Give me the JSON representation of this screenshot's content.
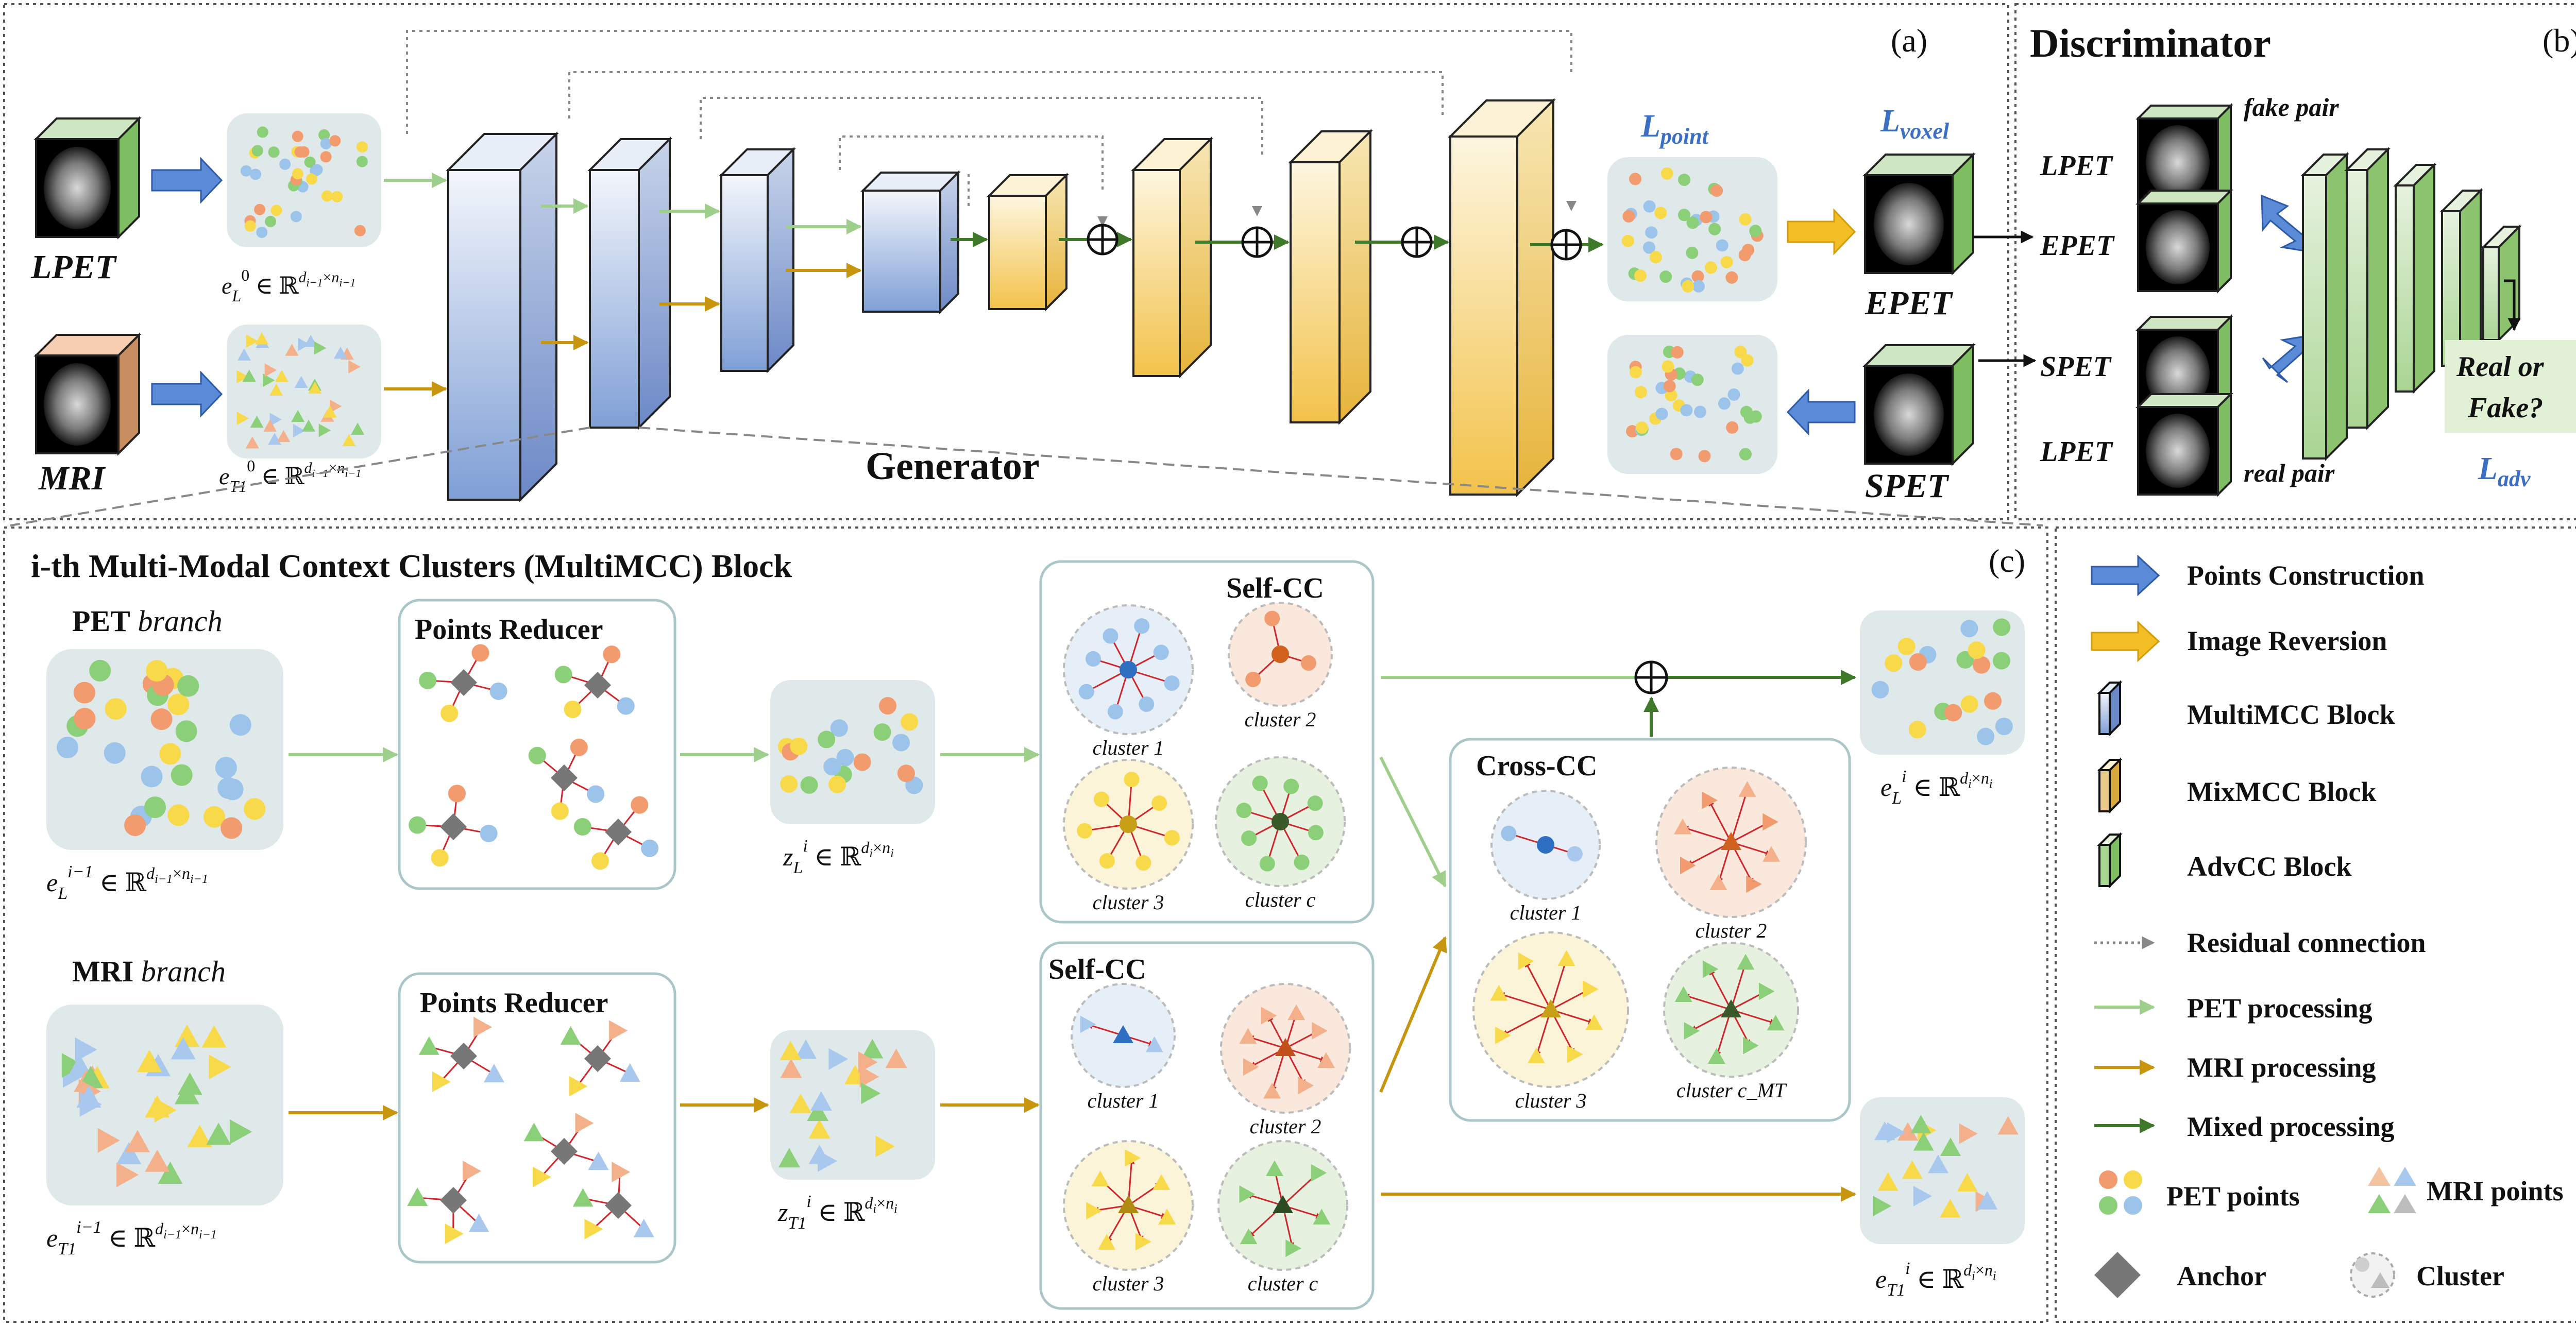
{
  "panels": {
    "a_label": "(a)",
    "b_label": "(b)",
    "c_label": "(c)"
  },
  "generator": {
    "title": "Generator",
    "inputs": {
      "lpet": "LPET",
      "mri": "MRI"
    },
    "outputs": {
      "epet": "EPET",
      "spet": "SPET"
    },
    "feature_labels": {
      "eL0": "e_L^0 ∈ ℝ^{d_{i−1}×n_{i−1}}",
      "eT10": "e_{T1}^0 ∈ ℝ^{d_{i−1}×n_{i−1}}"
    },
    "losses": {
      "point": "L_point",
      "voxel": "L_voxel"
    }
  },
  "discriminator": {
    "title": "Discriminator",
    "labels": {
      "lpet_top": "LPET",
      "epet": "EPET",
      "spet": "SPET",
      "lpet_bottom": "LPET",
      "fake_pair": "fake pair",
      "real_pair": "real pair",
      "decision_line1": "Real or",
      "decision_line2": "Fake?",
      "loss": "L_adv"
    }
  },
  "block": {
    "title": "i-th Multi-Modal Context Clusters (MultiMCC) Block",
    "pet_branch": "PET branch",
    "mri_branch": "MRI branch",
    "points_reducer_top": "Points Reducer",
    "points_reducer_bottom": "Points Reducer",
    "self_cc_top": "Self-CC",
    "self_cc_bottom": "Self-CC",
    "cross_cc": "Cross-CC",
    "clusters_top": [
      "cluster 1",
      "cluster 2",
      "cluster 3",
      "cluster c"
    ],
    "clusters_bottom": [
      "cluster 1",
      "cluster 2",
      "cluster 3",
      "cluster c"
    ],
    "clusters_cross": [
      "cluster 1",
      "cluster 2",
      "cluster 3",
      "cluster c_MT"
    ],
    "labels": {
      "eL_prev": "e_L^{i−1} ∈ ℝ^{d_{i−1}×n_{i−1}}",
      "eT1_prev": "e_{T1}^{i−1} ∈ ℝ^{d_{i−1}×n_{i−1}}",
      "zL": "z_L^i ∈ ℝ^{d_i×n_i}",
      "zT1": "z_{T1}^i ∈ ℝ^{d_i×n_i}",
      "eL_out": "e_L^i ∈ ℝ^{d_i×n_i}",
      "eT1_out": "e_{T1}^i ∈ ℝ^{d_i×n_i}"
    }
  },
  "legend": [
    {
      "key": "points",
      "label": "Points Construction"
    },
    {
      "key": "reversion",
      "label": "Image Reversion"
    },
    {
      "key": "multimcc",
      "label": "MultiMCC Block"
    },
    {
      "key": "mixmcc",
      "label": "MixMCC Block"
    },
    {
      "key": "advcc",
      "label": "AdvCC Block"
    },
    {
      "key": "residual",
      "label": "Residual connection"
    },
    {
      "key": "pet",
      "label": "PET processing"
    },
    {
      "key": "mri",
      "label": "MRI processing"
    },
    {
      "key": "mixed",
      "label": "Mixed processing"
    },
    {
      "key": "pet_points",
      "label": "PET points"
    },
    {
      "key": "mri_points",
      "label": "MRI points"
    },
    {
      "key": "anchor",
      "label": "Anchor"
    },
    {
      "key": "cluster",
      "label": "Cluster"
    }
  ],
  "colors": {
    "pet_line": "#9fd08b",
    "mri_line": "#c8960e",
    "mixed_line": "#3e7a2a",
    "blue_arrow": "#5b8ad6",
    "yellow_arrow": "#f2bd25",
    "loss_text": "#3a6fc4",
    "panel_bg": "#dfe9ea"
  }
}
